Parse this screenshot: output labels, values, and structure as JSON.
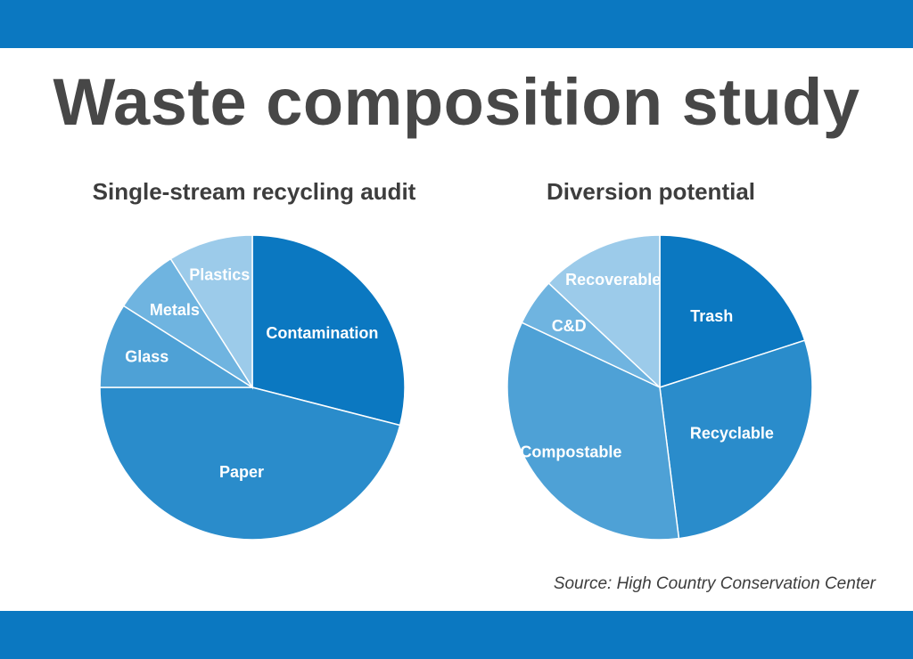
{
  "header": {
    "title": "Waste composition study"
  },
  "footer": {
    "source": "Source: High Country Conservation Center"
  },
  "colors": {
    "band": "#0b78c1",
    "title": "#474747",
    "slice_border": "#ffffff"
  },
  "chart_data": [
    {
      "type": "pie",
      "title": "Single-stream recycling audit",
      "slices": [
        {
          "label": "Contamination",
          "value": 29,
          "color": "#0b78c1"
        },
        {
          "label": "Paper",
          "value": 46,
          "color": "#2a8ccb"
        },
        {
          "label": "Glass",
          "value": 9,
          "color": "#4ea1d6"
        },
        {
          "label": "Metals",
          "value": 7,
          "color": "#6fb4e0"
        },
        {
          "label": "Plastics",
          "value": 9,
          "color": "#9ccbea"
        }
      ]
    },
    {
      "type": "pie",
      "title": "Diversion potential",
      "slices": [
        {
          "label": "Trash",
          "value": 20,
          "color": "#0b78c1"
        },
        {
          "label": "Recyclable",
          "value": 28,
          "color": "#2a8ccb"
        },
        {
          "label": "Compostable",
          "value": 34,
          "color": "#4ea1d6"
        },
        {
          "label": "C&D",
          "value": 5,
          "color": "#6fb4e0"
        },
        {
          "label": "Recoverable",
          "value": 13,
          "color": "#9ccbea"
        }
      ]
    }
  ]
}
